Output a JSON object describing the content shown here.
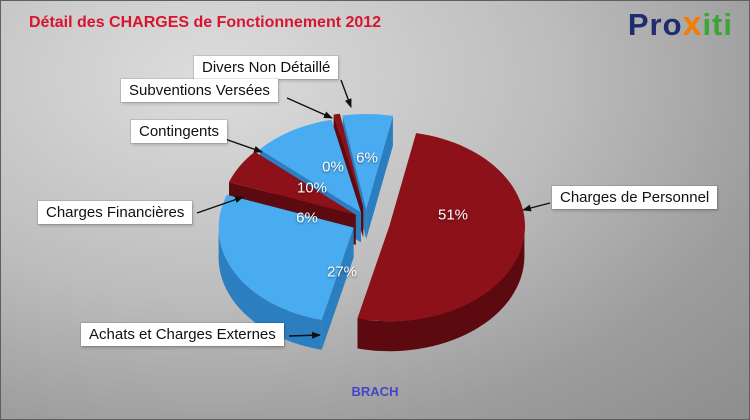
{
  "page": {
    "title": "Détail des CHARGES de Fonctionnement 2012",
    "footer_label": "BRACH"
  },
  "logo": {
    "pro": "Pro",
    "x": "x",
    "iti": "iti"
  },
  "colors": {
    "title": "#d8142f",
    "footer": "#4444cc",
    "logo_pro": "#1e2d6e",
    "logo_x": "#f57c00",
    "logo_iti": "#3aa63a",
    "pie_blue": "#49acf1",
    "pie_blue_side": "#2b7fc0",
    "pie_red": "#8d1119",
    "pie_red_side": "#5c0a10"
  },
  "chart_data": {
    "type": "pie",
    "title": "Détail des CHARGES de Fonctionnement 2012",
    "unit": "%",
    "style": "3d-exploded",
    "legend_position": "callout-labels",
    "slices": [
      {
        "label": "Divers Non Détaillé",
        "value": 6,
        "pct_label": "6%",
        "color": "#49acf1",
        "side_color": "#2b7fc0"
      },
      {
        "label": "Charges de Personnel",
        "value": 51,
        "pct_label": "51%",
        "color": "#8d1119",
        "side_color": "#5c0a10"
      },
      {
        "label": "Achats et Charges Externes",
        "value": 27,
        "pct_label": "27%",
        "color": "#49acf1",
        "side_color": "#2b7fc0"
      },
      {
        "label": "Charges Financières",
        "value": 6,
        "pct_label": "6%",
        "color": "#8d1119",
        "side_color": "#5c0a10"
      },
      {
        "label": "Contingents",
        "value": 10,
        "pct_label": "10%",
        "color": "#49acf1",
        "side_color": "#2b7fc0"
      },
      {
        "label": "Subventions Versées",
        "value": 0,
        "pct_label": "0%",
        "color": "#8d1119",
        "side_color": "#5c0a10"
      }
    ]
  }
}
